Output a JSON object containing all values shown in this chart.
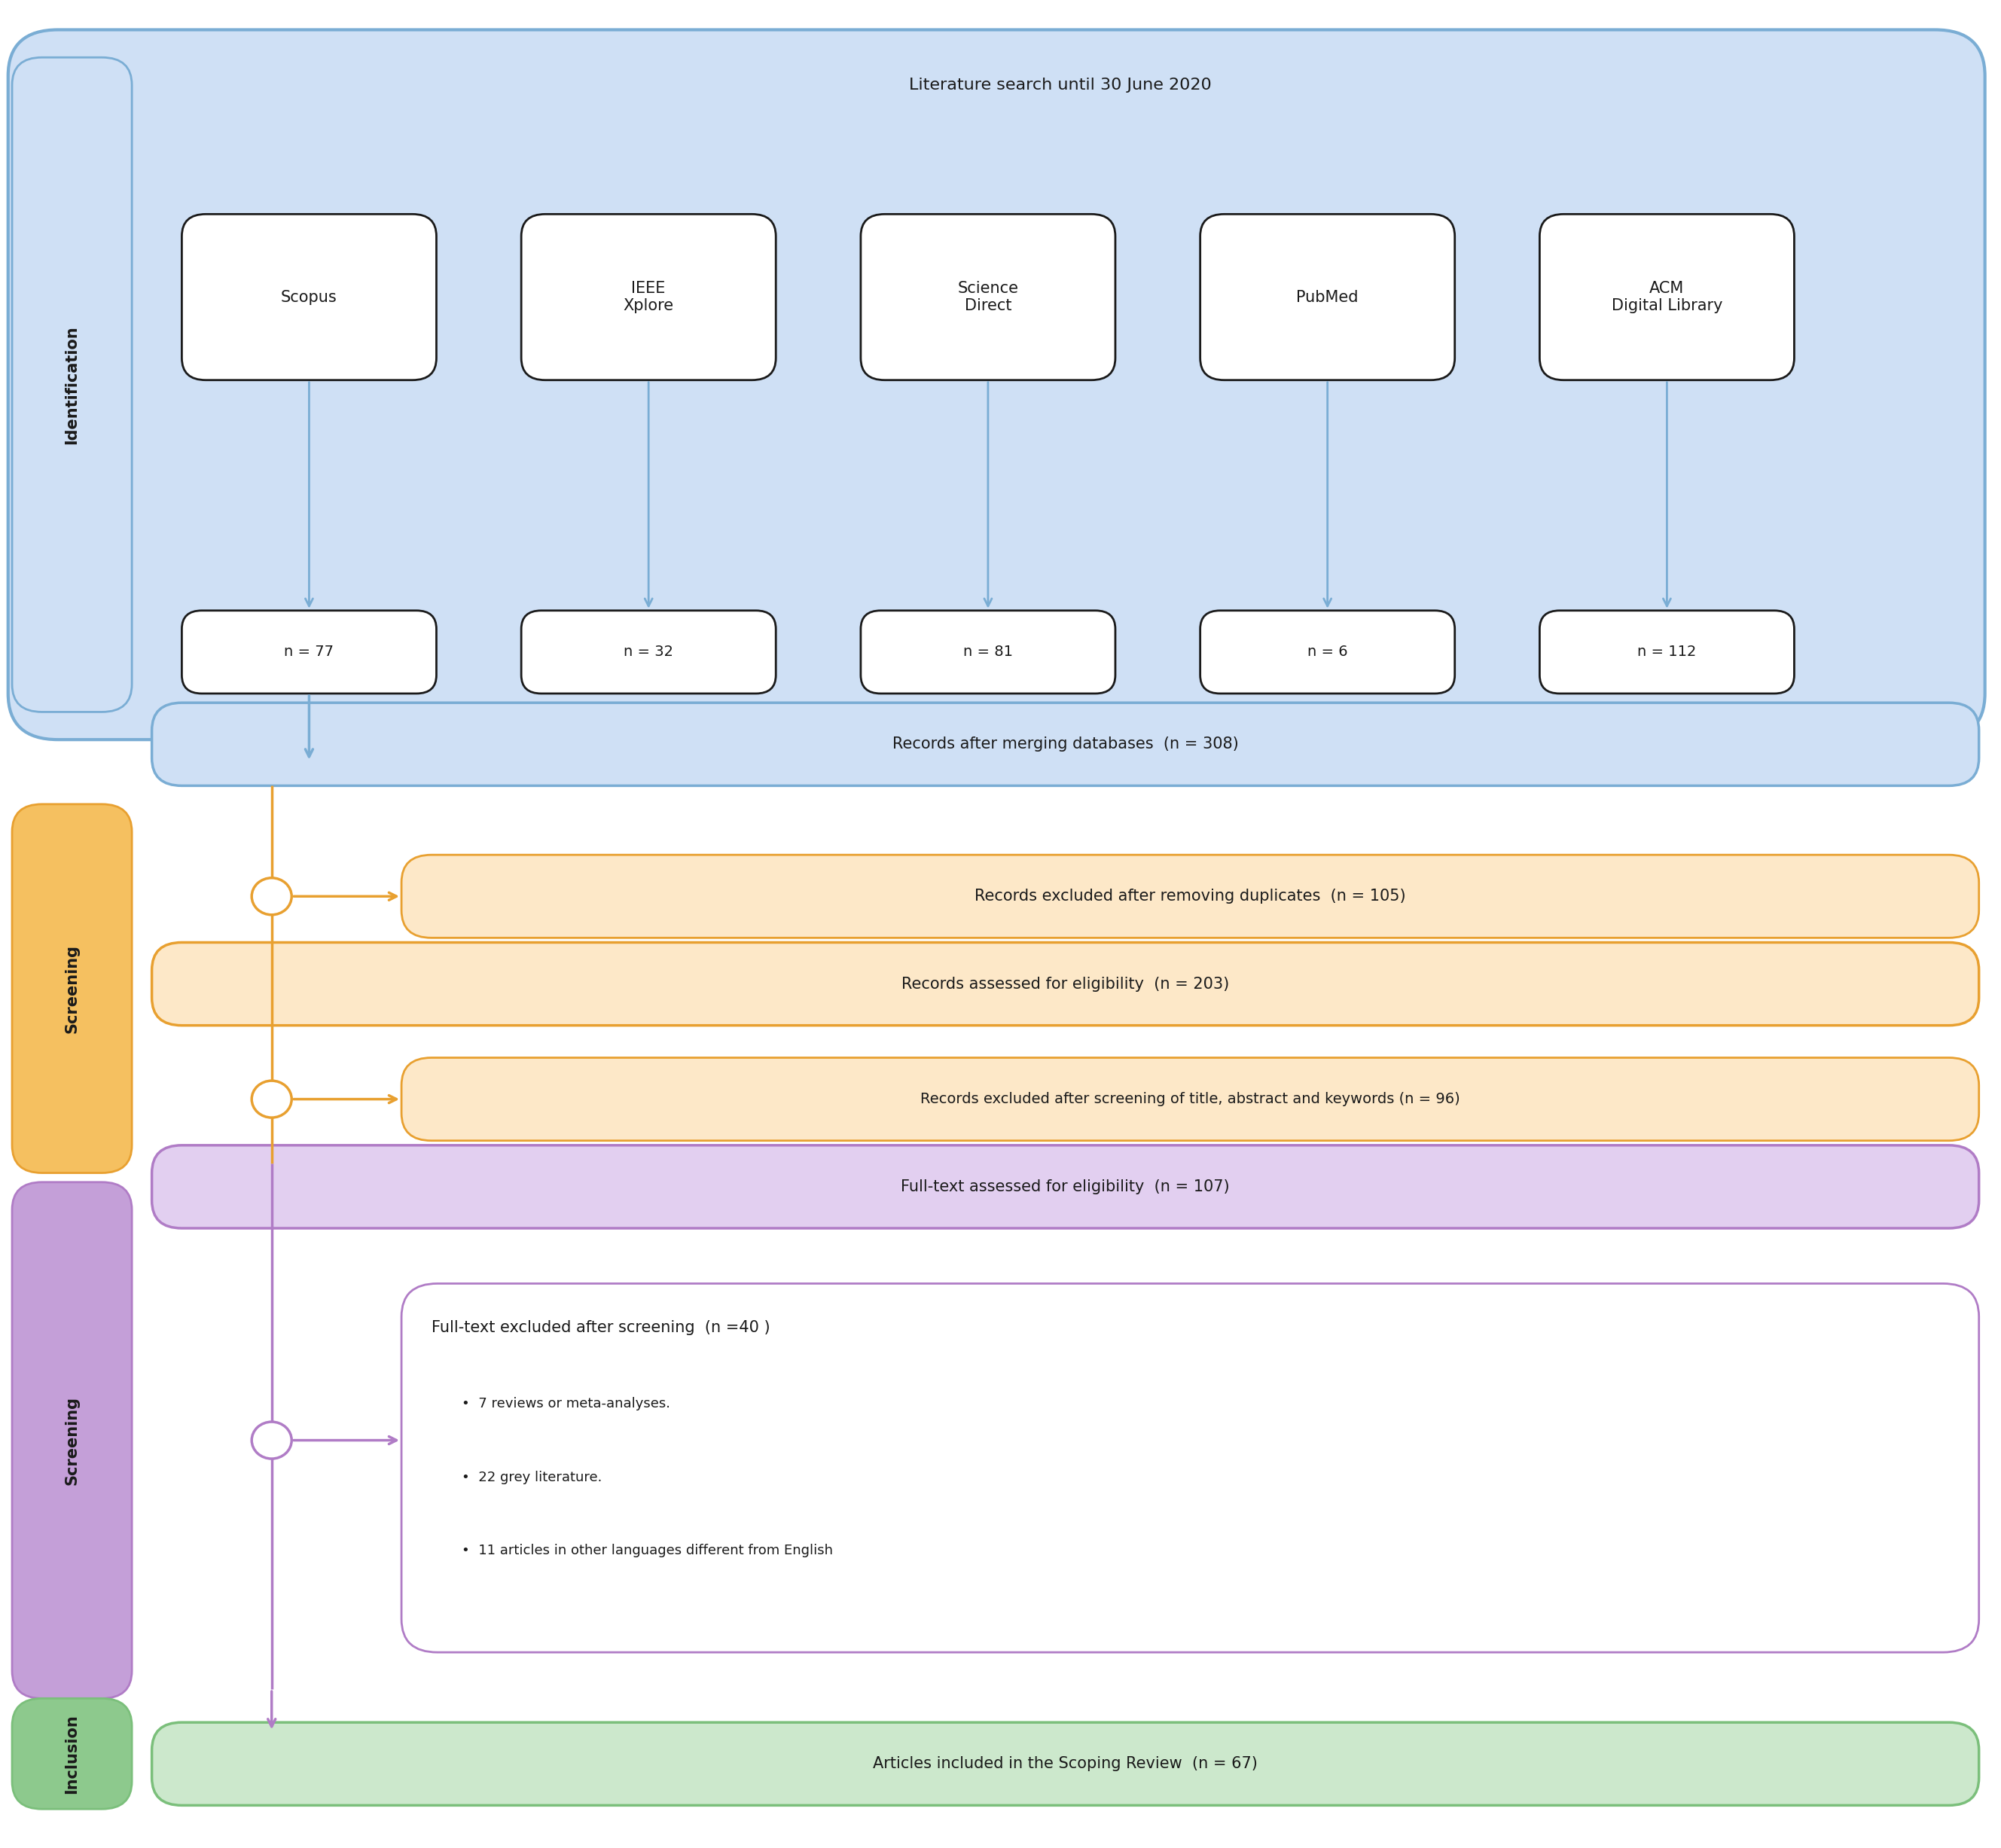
{
  "fig_width": 26.57,
  "fig_height": 24.54,
  "bg_color": "#ffffff",
  "identification_label": "Identification",
  "screening1_label": "Screening",
  "screening2_label": "Screening",
  "inclusion_label": "Inclusion",
  "lit_search_title": "Literature search until 30 June 2020",
  "databases": [
    "Scopus",
    "IEEE\nXplore",
    "Science\nDirect",
    "PubMed",
    "ACM\nDigital Library"
  ],
  "db_counts": [
    "n = 77",
    "n = 32",
    "n = 81",
    "n = 6",
    "n = 112"
  ],
  "merge_text": "Records after merging databases  (n = 308)",
  "excl_dup_text": "Records excluded after removing duplicates  (n = 105)",
  "eligibility1_text": "Records assessed for eligibility  (n = 203)",
  "excl_screen_text": "Records excluded after screening of title, abstract and keywords (n = 96)",
  "fulltext_eligibility_text": "Full-text assessed for eligibility  (n = 107)",
  "fulltext_excl_title": "Full-text excluded after screening  (n =40 )",
  "fulltext_excl_bullets": [
    "7 reviews or meta-analyses.",
    "22 grey literature.",
    "11 articles in other languages different from English"
  ],
  "inclusion_text": "Articles included in the Scoping Review  (n = 67)",
  "color_blue_bg": "#cfe0f5",
  "color_blue_border": "#7aadd4",
  "color_blue_arrow": "#7aadd4",
  "color_orange_bg": "#fde8c8",
  "color_orange_border": "#e8a030",
  "color_orange_arrow": "#e8a030",
  "color_orange_label_bg": "#f5c060",
  "color_purple_bg": "#e2cff0",
  "color_purple_border": "#b07cc6",
  "color_purple_arrow": "#b07cc6",
  "color_purple_label_bg": "#c49fd8",
  "color_green_bg": "#cce8cc",
  "color_green_border": "#7bbf7b",
  "color_green_label_bg": "#8dc98d",
  "color_white": "#ffffff",
  "color_black": "#1a1a1a",
  "fontsize_title": 16,
  "fontsize_main": 15,
  "fontsize_label": 15,
  "fontsize_db": 15,
  "fontsize_count": 14,
  "fontsize_bullet": 13
}
